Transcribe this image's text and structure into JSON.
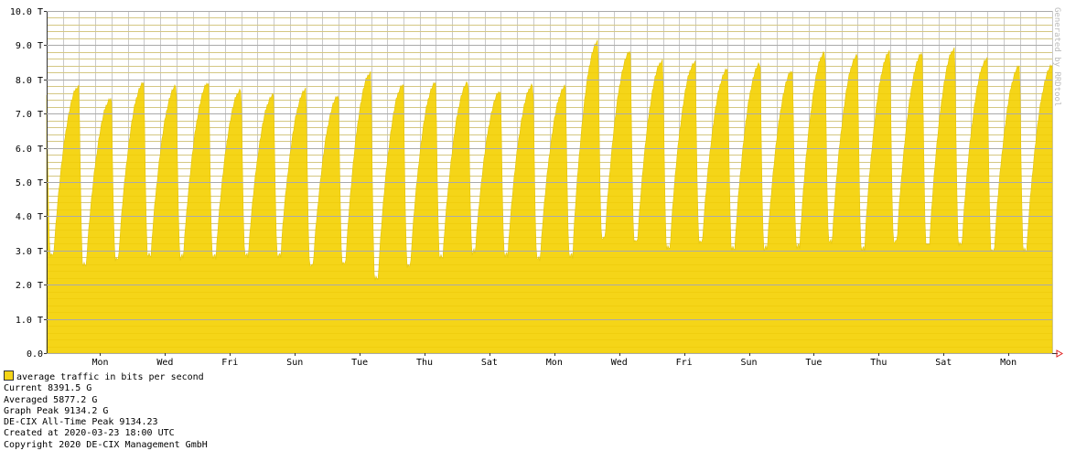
{
  "watermark": "Generated by RRDtool",
  "colors": {
    "fill": "#F5D518",
    "fill_stroke": "#E3C40D",
    "grid_minor": "#C9C9C9",
    "grid_major": "#AAAAAA",
    "arrow": "#E02020"
  },
  "legend": {
    "series_label": "average traffic in bits per second",
    "current": "Current 8391.5 G",
    "averaged": "Averaged 5877.2 G",
    "graph_peak": "Graph Peak 9134.2 G",
    "all_time_peak": "DE-CIX All-Time Peak 9134.23",
    "created": "Created at 2020-03-23 18:00 UTC",
    "copyright": "Copyright 2020 DE-CIX Management GmbH"
  },
  "chart_data": {
    "type": "area",
    "y_unit": "bits per second",
    "ylim": [
      0,
      10
    ],
    "y_ticks": [
      "0.0",
      "1.0 T",
      "2.0 T",
      "3.0 T",
      "4.0 T",
      "5.0 T",
      "6.0 T",
      "7.0 T",
      "8.0 T",
      "9.0 T",
      "10.0 T"
    ],
    "x_ticks": [
      "Mon",
      "Wed",
      "Fri",
      "Sun",
      "Tue",
      "Thu",
      "Sat",
      "Mon",
      "Wed",
      "Fri",
      "Sun",
      "Tue",
      "Thu",
      "Sat",
      "Mon"
    ],
    "grid": true,
    "series": [
      {
        "name": "average traffic in bits per second",
        "daily_peaks_T": [
          7.6,
          7.8,
          7.45,
          7.9,
          7.8,
          7.9,
          7.7,
          7.55,
          7.7,
          7.5,
          8.2,
          7.85,
          7.9,
          7.9,
          7.65,
          7.85,
          7.8,
          9.1,
          8.8,
          8.55,
          8.5,
          8.3,
          8.45,
          8.25,
          8.8,
          8.7,
          8.8,
          8.75,
          8.9,
          8.6,
          8.39
        ],
        "daily_troughs_T": [
          2.8,
          2.5,
          2.7,
          2.8,
          2.75,
          2.75,
          2.8,
          2.8,
          2.5,
          2.55,
          2.1,
          2.5,
          2.75,
          2.9,
          2.8,
          2.7,
          2.8,
          3.3,
          3.2,
          3.0,
          3.2,
          3.0,
          3.0,
          3.05,
          3.2,
          3.0,
          3.2,
          3.1,
          3.1,
          2.95
        ]
      }
    ]
  }
}
